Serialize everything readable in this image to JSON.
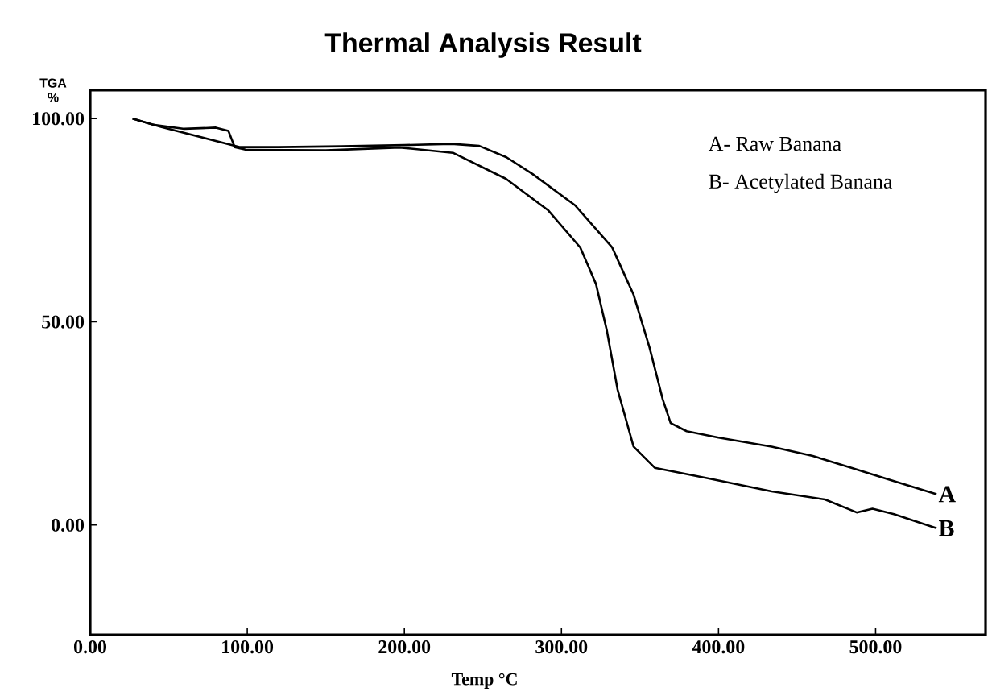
{
  "chart_data": {
    "type": "line",
    "title": "Thermal Analysis Result",
    "xlabel": "Temp °C",
    "ylabel": "TGA %",
    "xlim": [
      0,
      570
    ],
    "ylim": [
      -27,
      107
    ],
    "xticks": [
      {
        "value": 0,
        "label": "0.00"
      },
      {
        "value": 100,
        "label": "100.00"
      },
      {
        "value": 200,
        "label": "200.00"
      },
      {
        "value": 300,
        "label": "300.00"
      },
      {
        "value": 400,
        "label": "400.00"
      },
      {
        "value": 500,
        "label": "500.00"
      }
    ],
    "yticks": [
      {
        "value": 0,
        "label": "0.00"
      },
      {
        "value": 50,
        "label": "50.00"
      },
      {
        "value": 100,
        "label": "100.00"
      }
    ],
    "grid": false,
    "marker": "none",
    "line_style": "solid",
    "series": [
      {
        "color": "#000000",
        "x": [
          27,
          45,
          70,
          95,
          120,
          160,
          200,
          230,
          247.7,
          265,
          281.5,
          308.6,
          332.3,
          345.9,
          356,
          364.5,
          369.5,
          379.7,
          400,
          433.8,
          460,
          484.6,
          510,
          538.8
        ],
        "values": [
          100,
          98,
          95.5,
          93,
          93,
          93.2,
          93.5,
          93.8,
          93.3,
          90.5,
          86.4,
          78.7,
          68.3,
          56.7,
          43.8,
          30.9,
          25.1,
          23.1,
          21.5,
          19.3,
          17,
          14.1,
          11,
          7.6
        ]
      },
      {
        "color": "#000000",
        "x": [
          27,
          40,
          60,
          80,
          88,
          92,
          100,
          150,
          197,
          230.9,
          264.7,
          291.7,
          312,
          322,
          329,
          335.7,
          345.9,
          359.4,
          393.2,
          433.8,
          467.7,
          488,
          498,
          511.7,
          538.8
        ],
        "values": [
          100,
          98.5,
          97.5,
          97.8,
          97,
          93,
          92.3,
          92.2,
          92.9,
          91.6,
          85.2,
          77.4,
          68.3,
          59.3,
          47.7,
          33.4,
          19.3,
          14.1,
          11.5,
          8.3,
          6.3,
          3.1,
          4,
          2.7,
          -0.8
        ]
      }
    ],
    "annotations": [
      "A- Raw Banana",
      "B- Acetylated Banana",
      {
        "text": "A",
        "x": 538.8,
        "y": 7.6
      },
      {
        "text": "B",
        "x": 538.8,
        "y": -0.8
      }
    ]
  }
}
